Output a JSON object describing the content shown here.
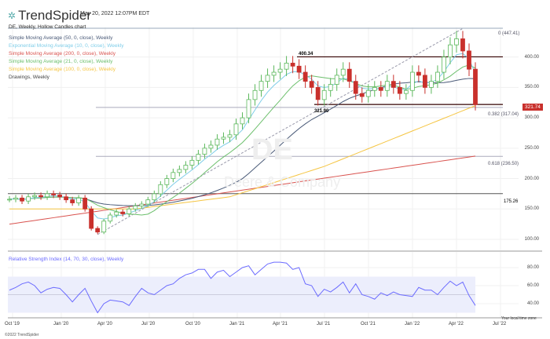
{
  "header": {
    "brand": "TrendSpider",
    "timestamp": "May 20, 2022 12:07PM EDT",
    "chart_title": "DE, Weekly, Hollow Candles chart"
  },
  "legend": [
    {
      "label": "Simple Moving Average (50, 0, close), Weekly",
      "color": "#4a5a78"
    },
    {
      "label": "Exponential Moving Average (10, 0, close), Weekly",
      "color": "#7fcde8"
    },
    {
      "label": "Simple Moving Average (200, 0, close), Weekly",
      "color": "#d9534f"
    },
    {
      "label": "Simple Moving Average (21, 0, close), Weekly",
      "color": "#6cbf6c"
    },
    {
      "label": "Simple Moving Average (100, 0, close), Weekly",
      "color": "#f5c542"
    },
    {
      "label": "Drawings, Weekly",
      "color": "#444444"
    }
  ],
  "watermark": {
    "symbol": "DE",
    "name": "Deere & Company"
  },
  "price_axis": [
    "400.00",
    "350.00",
    "300.00",
    "250.00",
    "200.00",
    "150.00",
    "100.00"
  ],
  "levels": {
    "fib0": "0 (447.41)",
    "high": "400.34",
    "low": "321.90",
    "fib382": "0.382 (317.04)",
    "fib618": "0.618 (236.50)",
    "support": "175.26"
  },
  "last_price": "321.74",
  "colors": {
    "up": "#5cb85c",
    "down": "#c9302c",
    "rsi": "#6b6bff",
    "last": "#c9302c"
  },
  "rsi": {
    "label": "Relative Strength Index (14, 70, 30, close), Weekly",
    "axis": [
      "80.00",
      "60.00",
      "40.00"
    ],
    "band": [
      30,
      70
    ]
  },
  "time_axis": [
    "Oct '19",
    "Jan '20",
    "Apr '20",
    "Jul '20",
    "Oct '20",
    "Jan '21",
    "Apr '21",
    "Jul '21",
    "Oct '21",
    "Jan '22",
    "Apr '22",
    "Jul '22"
  ],
  "timezone": "Your local time zone",
  "copyright": "©2022 TrendSpider",
  "chart_data": {
    "type": "candlestick",
    "closes": [
      166,
      168,
      163,
      170,
      172,
      170,
      175,
      173,
      170,
      165,
      160,
      168,
      150,
      118,
      112,
      130,
      140,
      145,
      142,
      150,
      155,
      158,
      165,
      175,
      190,
      200,
      210,
      215,
      222,
      230,
      240,
      250,
      255,
      265,
      268,
      272,
      290,
      300,
      330,
      345,
      360,
      370,
      375,
      380,
      390,
      385,
      375,
      360,
      350,
      330,
      345,
      355,
      370,
      380,
      360,
      340,
      335,
      345,
      350,
      345,
      360,
      350,
      340,
      345,
      375,
      370,
      350,
      360,
      375,
      400,
      420,
      430,
      410,
      380,
      321.74
    ],
    "sma100": [
      [
        0,
        150
      ],
      [
        20,
        150
      ],
      [
        35,
        170
      ],
      [
        50,
        220
      ],
      [
        62,
        270
      ],
      [
        74,
        320
      ]
    ],
    "sma200": [
      [
        0,
        125
      ],
      [
        74,
        237
      ]
    ],
    "rsi_values": [
      55,
      58,
      62,
      64,
      60,
      52,
      56,
      58,
      57,
      50,
      42,
      50,
      57,
      43,
      30,
      40,
      44,
      43,
      42,
      38,
      48,
      57,
      52,
      50,
      55,
      60,
      62,
      68,
      72,
      74,
      78,
      78,
      68,
      75,
      77,
      70,
      75,
      80,
      82,
      72,
      78,
      84,
      86,
      86,
      85,
      78,
      80,
      62,
      60,
      48,
      56,
      53,
      58,
      64,
      52,
      62,
      50,
      48,
      45,
      52,
      49,
      53,
      50,
      49,
      48,
      58,
      55,
      55,
      50,
      58,
      65,
      60,
      64,
      49,
      38
    ],
    "ylim": [
      100,
      470
    ],
    "rsi_ylim": [
      20,
      90
    ]
  }
}
